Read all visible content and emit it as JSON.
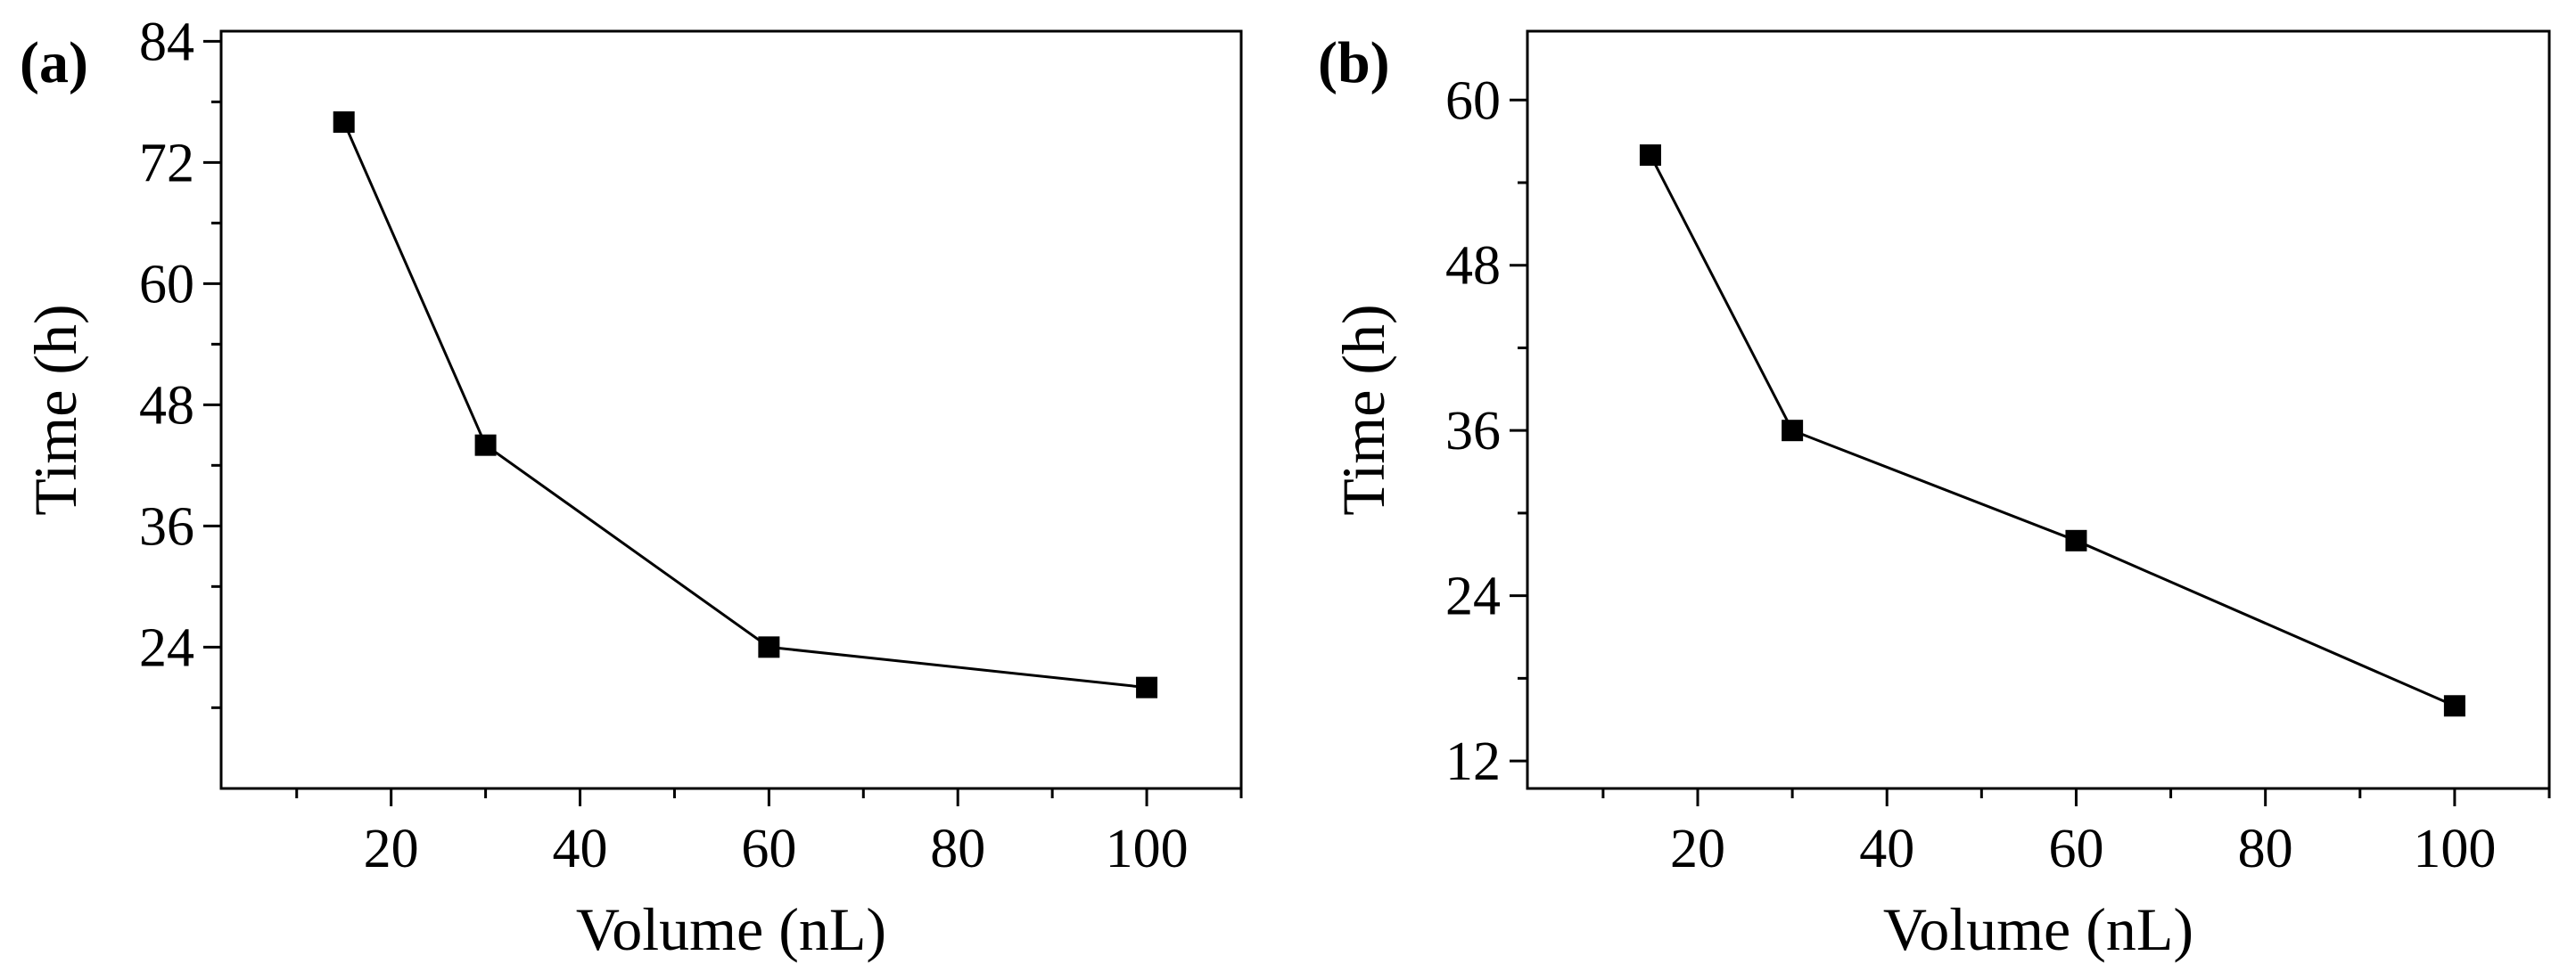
{
  "colors": {
    "marker": "#000000",
    "line": "#000000",
    "axis": "#000000",
    "background": "#ffffff"
  },
  "chart_data": [
    {
      "type": "line",
      "panel_label": "(a)",
      "xlabel": "Volume (nL)",
      "ylabel": "Time (h)",
      "xlim": [
        2,
        110
      ],
      "ylim": [
        10,
        85
      ],
      "xticks": [
        20,
        40,
        60,
        80,
        100
      ],
      "xtick_labels": [
        "20",
        "40",
        "60",
        "80",
        "100"
      ],
      "yticks": [
        24,
        36,
        48,
        60,
        72,
        84
      ],
      "ytick_labels": [
        "24",
        "36",
        "48",
        "60",
        "72",
        "84"
      ],
      "grid": false,
      "marker": "square",
      "x": [
        15,
        30,
        60,
        100
      ],
      "y": [
        76,
        44,
        24,
        20
      ]
    },
    {
      "type": "line",
      "panel_label": "(b)",
      "xlabel": "Volume (nL)",
      "ylabel": "Time (h)",
      "xlim": [
        2,
        110
      ],
      "ylim": [
        10,
        65
      ],
      "xticks": [
        20,
        40,
        60,
        80,
        100
      ],
      "xtick_labels": [
        "20",
        "40",
        "60",
        "80",
        "100"
      ],
      "yticks": [
        12,
        24,
        36,
        48,
        60
      ],
      "ytick_labels": [
        "12",
        "24",
        "36",
        "48",
        "60"
      ],
      "grid": false,
      "marker": "square",
      "x": [
        15,
        30,
        60,
        100
      ],
      "y": [
        56,
        36,
        28,
        16
      ]
    }
  ]
}
